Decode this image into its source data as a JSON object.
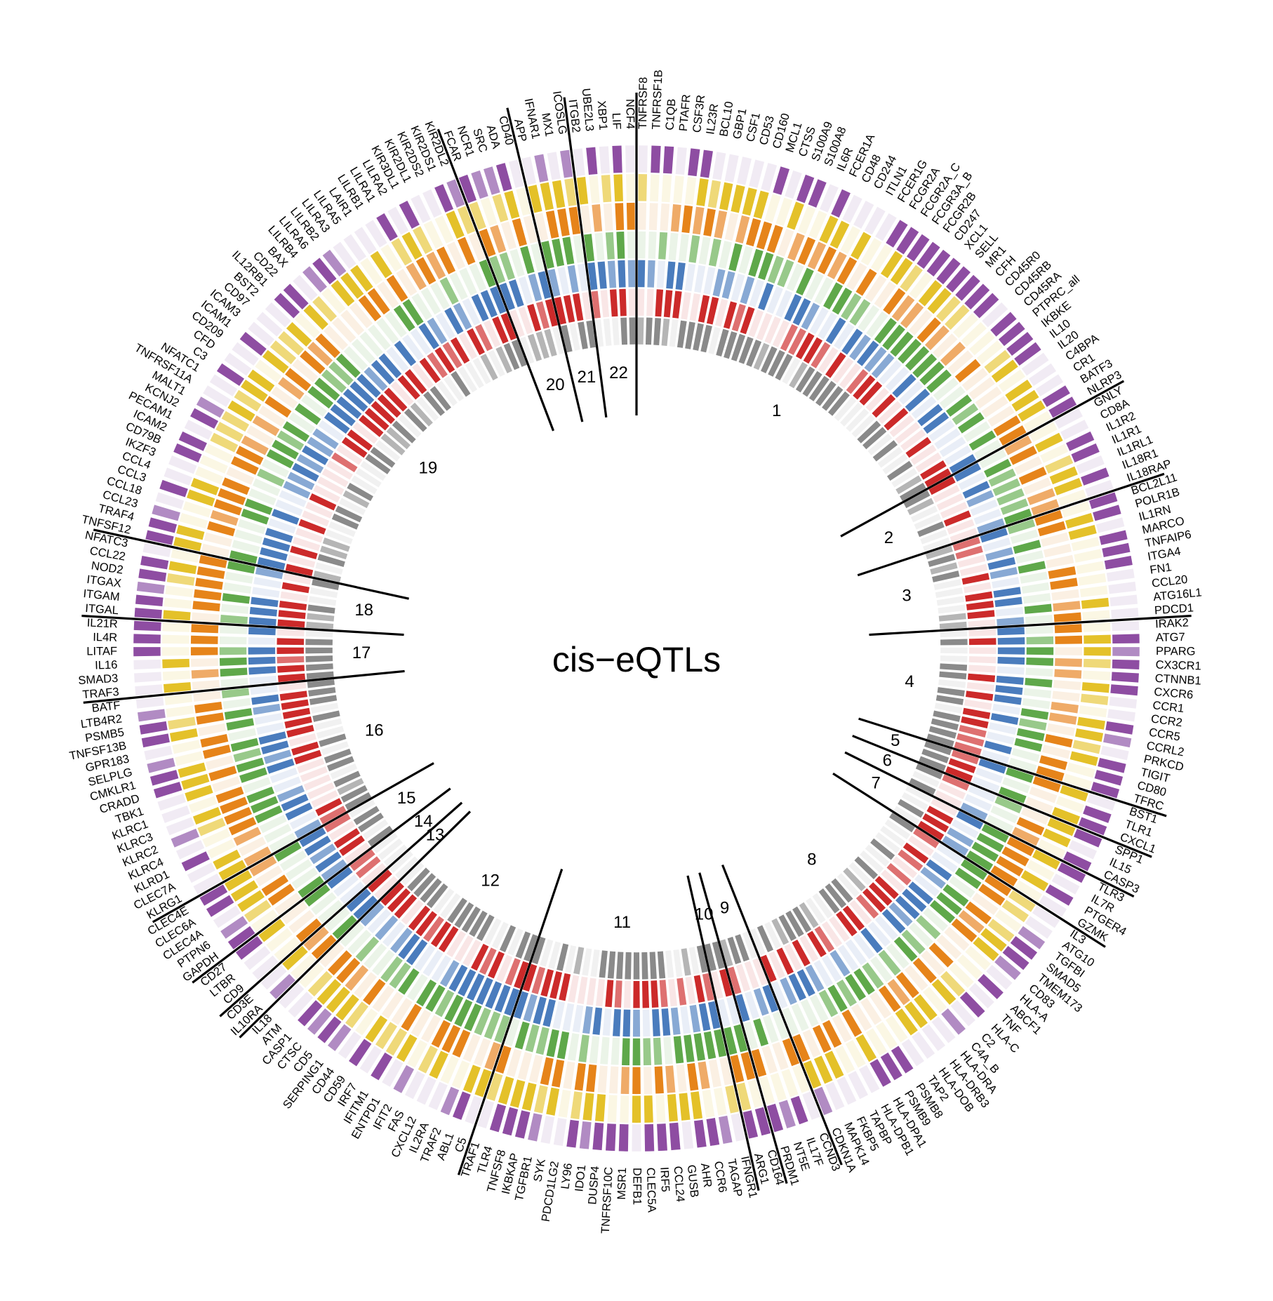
{
  "chart_data": {
    "type": "heatmap",
    "title": "cis−eQTLs",
    "track_colors": [
      {
        "base": "#8e4da2",
        "light": "#b18bc3",
        "bg": "#f1ebf4"
      },
      {
        "base": "#e4c129",
        "light": "#efd979",
        "bg": "#fbf7e4"
      },
      {
        "base": "#e6841a",
        "light": "#efab68",
        "bg": "#fbf0e3"
      },
      {
        "base": "#5fa84a",
        "light": "#98c98a",
        "bg": "#ebf4e8"
      },
      {
        "base": "#4a7cbd",
        "light": "#88a9d4",
        "bg": "#e9eef7"
      },
      {
        "base": "#cc2a2a",
        "light": "#de7070",
        "bg": "#f9e6e6"
      },
      {
        "base": "#8a8a8a",
        "light": "#b5b5b5",
        "bg": "#f1f1f1"
      }
    ],
    "chromosomes": [
      {
        "label": "1",
        "genes": [
          "TNFRSF8",
          "TNFRSF1B",
          "C1QB",
          "PTAFR",
          "CSF3R",
          "IL23R",
          "BCL10",
          "GBP1",
          "CSF1",
          "CD53",
          "CD160",
          "MCL1",
          "CTSS",
          "S100A9",
          "S100A8",
          "IL6R",
          "FCER1A",
          "CD48",
          "CD244",
          "ITLN1",
          "FCER1G",
          "FCGR2A",
          "FCGR2A_C",
          "FCGR3A_B",
          "FCGR2B",
          "CD247",
          "XCL1",
          "SELL",
          "MR1",
          "CFH",
          "CD45R0",
          "CD45RB",
          "CD45RA",
          "PTPRC_all",
          "IKBKE",
          "IL10",
          "IL20",
          "C4BPA",
          "CR1",
          "BATF3",
          "NLRP3"
        ]
      },
      {
        "label": "2",
        "genes": [
          "GNLY",
          "CD8A",
          "IL1R2",
          "IL1R1",
          "IL1RL1",
          "IL18R1",
          "IL18RAP"
        ]
      },
      {
        "label": "3",
        "genes": [
          "BCL2L11",
          "POLR1B",
          "IL1RN",
          "MARCO",
          "TNFAIP6",
          "ITGA4",
          "FN1",
          "CCL20",
          "ATG16L1",
          "PDCD1"
        ]
      },
      {
        "label": "4",
        "genes": [
          "IRAK2",
          "ATG7",
          "PPARG",
          "CX3CR1",
          "CTNNB1",
          "CXCR6",
          "CCR1",
          "CCR2",
          "CCR5",
          "CCRL2",
          "PRKCD",
          "TIGIT",
          "CD80",
          "TFRC"
        ]
      },
      {
        "label": "5",
        "genes": [
          "BST1",
          "TLR1",
          "CXCL1"
        ]
      },
      {
        "label": "6",
        "genes": [
          "SPP1",
          "IL15",
          "CASP3"
        ]
      },
      {
        "label": "7",
        "genes": [
          "TLR3",
          "IL7R",
          "PTGER4",
          "GZMK"
        ]
      },
      {
        "label": "8",
        "genes": [
          "IL3",
          "ATG10",
          "TGFBI",
          "SMAD5",
          "TMEM173",
          "CD83",
          "HLA-A",
          "ABCF1",
          "TNF",
          "HLA-C",
          "C2",
          "C4A_B",
          "HLA-DRA",
          "HLA-DRB3",
          "HLA-DOB",
          "TAP2",
          "PSMB8",
          "PSMB9",
          "HLA-DPA1",
          "HLA-DPB1",
          "TAPBP",
          "FKBP5",
          "MAPK14",
          "CDKN1A"
        ]
      },
      {
        "label": "9",
        "genes": [
          "CCND3",
          "IL17F",
          "NT5E",
          "PRDM1"
        ]
      },
      {
        "label": "10",
        "genes": [
          "CD164",
          "ARG1"
        ]
      },
      {
        "label": "11",
        "genes": [
          "IFNGR1",
          "TAGAP",
          "CCR6",
          "AHR",
          "GUSB",
          "CCL24",
          "IRF5",
          "CLEC5A",
          "DEFB1",
          "MSR1",
          "TNFRSF10C",
          "DUSP4",
          "IDO1",
          "LY96",
          "PDCD1LG2",
          "SYK",
          "TGFBR1",
          "IKBKAP",
          "TNFSF8",
          "TLR4",
          "TRAF1"
        ]
      },
      {
        "label": "12",
        "genes": [
          "C5",
          "ABL1",
          "TRAF2",
          "IL2RA",
          "CXCL12",
          "FAS",
          "IFIT2",
          "ENTPD1",
          "IFITM1",
          "IRF7",
          "CD59",
          "CD44",
          "SERPING1",
          "CD5",
          "CTSC",
          "CASP1",
          "ATM",
          "IL18"
        ]
      },
      {
        "label": "13",
        "genes": [
          "IL10RA",
          "CD3E"
        ]
      },
      {
        "label": "14",
        "genes": [
          "CD9",
          "LTBR",
          "CD27"
        ]
      },
      {
        "label": "15",
        "genes": [
          "GAPDH",
          "PTPN6",
          "CLEC4A",
          "CLEC6A",
          "CLEC4E"
        ]
      },
      {
        "label": "16",
        "genes": [
          "KLRG1",
          "CLEC7A",
          "KLRD1",
          "KLRC4",
          "KLRC2",
          "KLRC3",
          "KLRC1",
          "TBK1",
          "CRADD",
          "CMKLR1",
          "SELPLG",
          "GPR183",
          "TNFSF13B",
          "PSMB5",
          "LTB4R2",
          "BATF"
        ]
      },
      {
        "label": "17",
        "genes": [
          "TRAF3",
          "SMAD3",
          "IL16",
          "LITAF",
          "IL4R",
          "IL21R"
        ]
      },
      {
        "label": "18",
        "genes": [
          "ITGAL",
          "ITGAM",
          "ITGAX",
          "NOD2",
          "CCL22",
          "NFATC3"
        ]
      },
      {
        "label": "19",
        "genes": [
          "TNFSF12",
          "TRAF4",
          "CCL23",
          "CCL18",
          "CCL3",
          "CCL4",
          "IKZF3",
          "CD79B",
          "ICAM2",
          "PECAM1",
          "KCNJ2",
          "MALT1",
          "TNFRSF11A",
          "NFATC1",
          "C3",
          "CFD",
          "CD209",
          "ICAM1",
          "ICAM3",
          "CD97",
          "BST2",
          "IL12RB1",
          "CD22",
          "BAX",
          "LILRB4",
          "LILRA6",
          "LILRB2",
          "LILRA3",
          "LILRA5",
          "LAIR1",
          "LILRB1",
          "LILRA1",
          "LILRA2",
          "KIR3DL1",
          "KIR2DL1",
          "KIR2DS2",
          "KIR2DS1",
          "KIR2DL2"
        ]
      },
      {
        "label": "20",
        "genes": [
          "FCAR",
          "NCR1",
          "SRC",
          "ADA",
          "CD40"
        ]
      },
      {
        "label": "21",
        "genes": [
          "APP",
          "IFNAR1",
          "MX1",
          "ICOSLG"
        ]
      },
      {
        "label": "22",
        "genes": [
          "ITGB2",
          "UBE2L3",
          "XBP1",
          "LIF",
          "NCF4"
        ]
      }
    ]
  }
}
